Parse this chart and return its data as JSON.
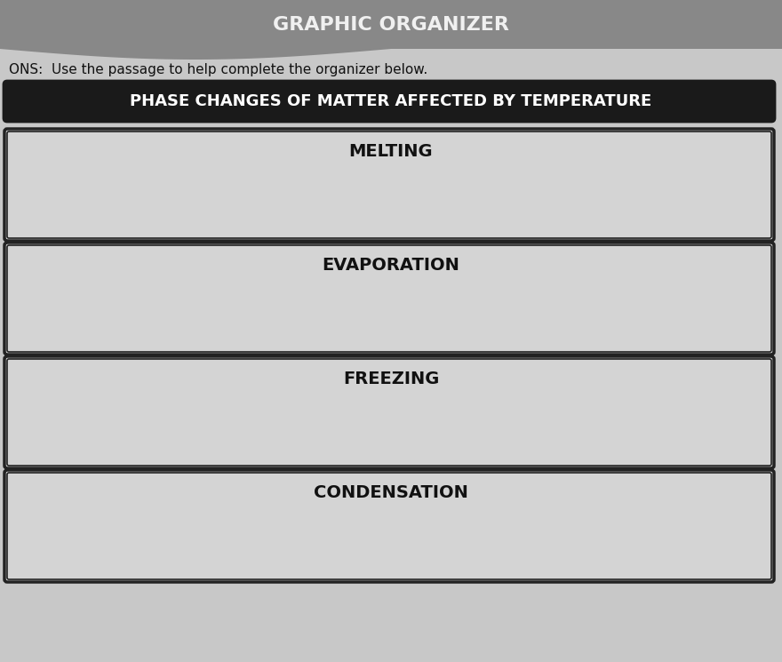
{
  "title": "GRAPHIC ORGANIZER",
  "subtitle": "ONS:  Use the passage to help complete the organizer below.",
  "header": "PHASE CHANGES OF MATTER AFFECTED BY TEMPERATURE",
  "phases": [
    "MELTING",
    "EVAPORATION",
    "FREEZING",
    "CONDENSATION"
  ],
  "bg_color": "#c8c8c8",
  "header_bg": "#1a1a1a",
  "header_text_color": "#ffffff",
  "box_bg": "#d4d4d4",
  "box_border": "#222222",
  "title_bg": "#3a3a3a",
  "title_text_color": "#f0f0f0",
  "top_bg": "#888888"
}
